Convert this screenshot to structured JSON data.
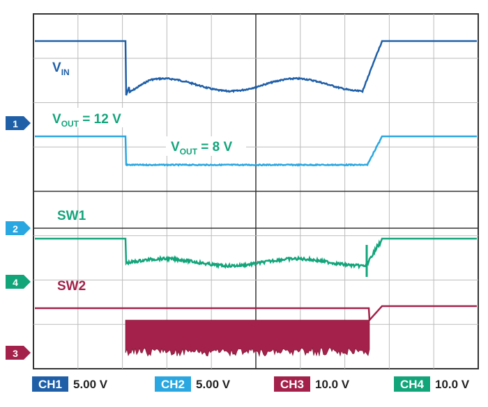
{
  "labels": {
    "vin": {
      "main": "V",
      "sub": "IN"
    },
    "vout12": {
      "main": "V",
      "sub": "OUT",
      "rest": " = 12 V"
    },
    "vout8": {
      "main": "V",
      "sub": "OUT",
      "rest": " = 8 V"
    },
    "sw1": "SW1",
    "sw2": "SW2"
  },
  "markers": [
    "1",
    "2",
    "4",
    "3"
  ],
  "channels": [
    {
      "name": "CH1",
      "scale": "5.00 V"
    },
    {
      "name": "CH2",
      "scale": "5.00 V"
    },
    {
      "name": "CH3",
      "scale": "10.0 V"
    },
    {
      "name": "CH4",
      "scale": "10.0 V"
    }
  ]
}
